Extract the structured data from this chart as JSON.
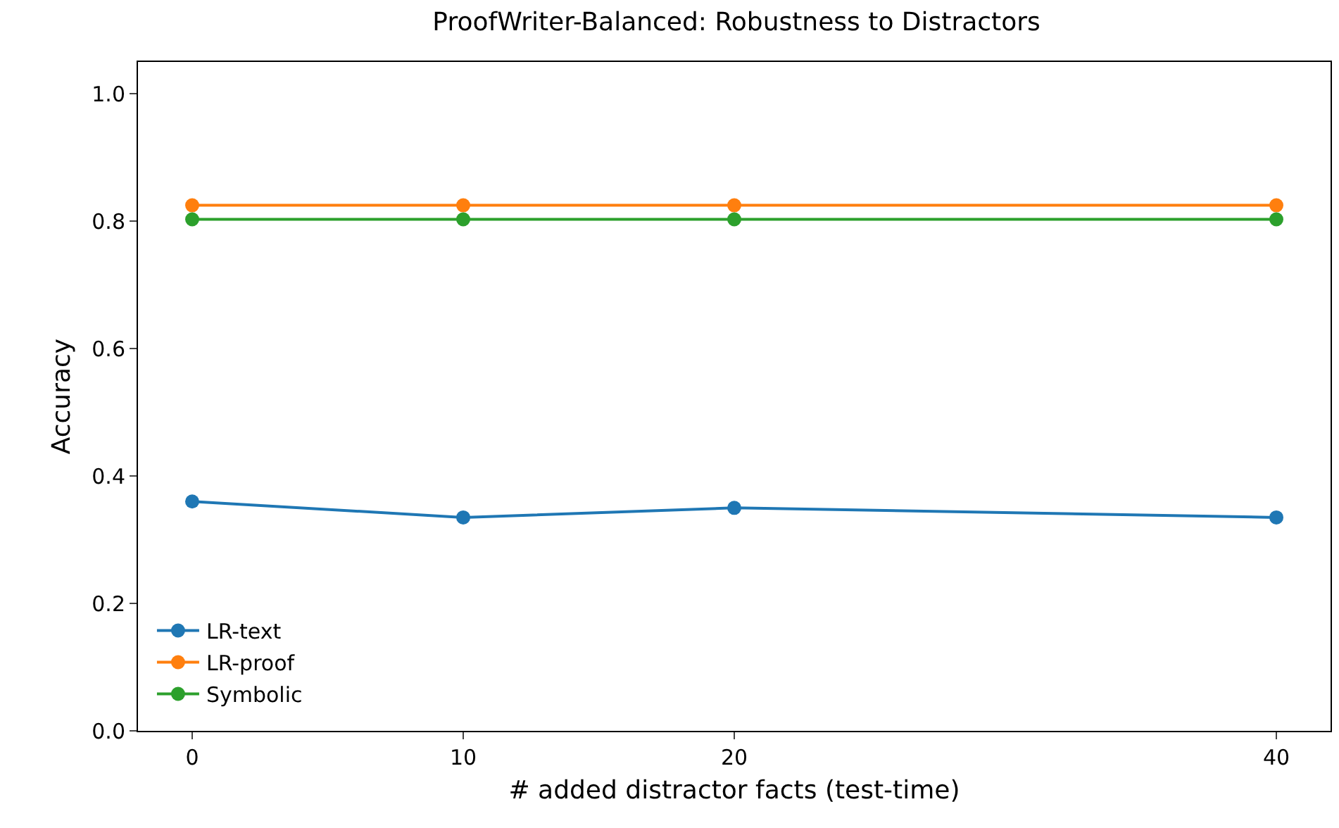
{
  "chart_data": {
    "type": "line",
    "title": "ProofWriter-Balanced: Robustness to Distractors",
    "xlabel": "# added distractor facts (test-time)",
    "ylabel": "Accuracy",
    "x": [
      0,
      10,
      20,
      40
    ],
    "series": [
      {
        "name": "LR-text",
        "color": "#1f77b4",
        "values": [
          0.36,
          0.335,
          0.35,
          0.335
        ]
      },
      {
        "name": "LR-proof",
        "color": "#ff7f0e",
        "values": [
          0.825,
          0.825,
          0.825,
          0.825
        ]
      },
      {
        "name": "Symbolic",
        "color": "#2ca02c",
        "values": [
          0.803,
          0.803,
          0.803,
          0.803
        ]
      }
    ],
    "xlim": [
      -2,
      42
    ],
    "xticks": [
      0,
      10,
      20,
      40
    ],
    "ylim": [
      0,
      1.05
    ],
    "yticks": [
      {
        "value": 0,
        "label": "0.0"
      },
      0.2,
      0.4,
      0.6,
      0.8,
      {
        "value": 1,
        "label": "1.0"
      }
    ],
    "grid": false,
    "legend": "bottom left",
    "marker": "circle",
    "line_style": "solid"
  }
}
